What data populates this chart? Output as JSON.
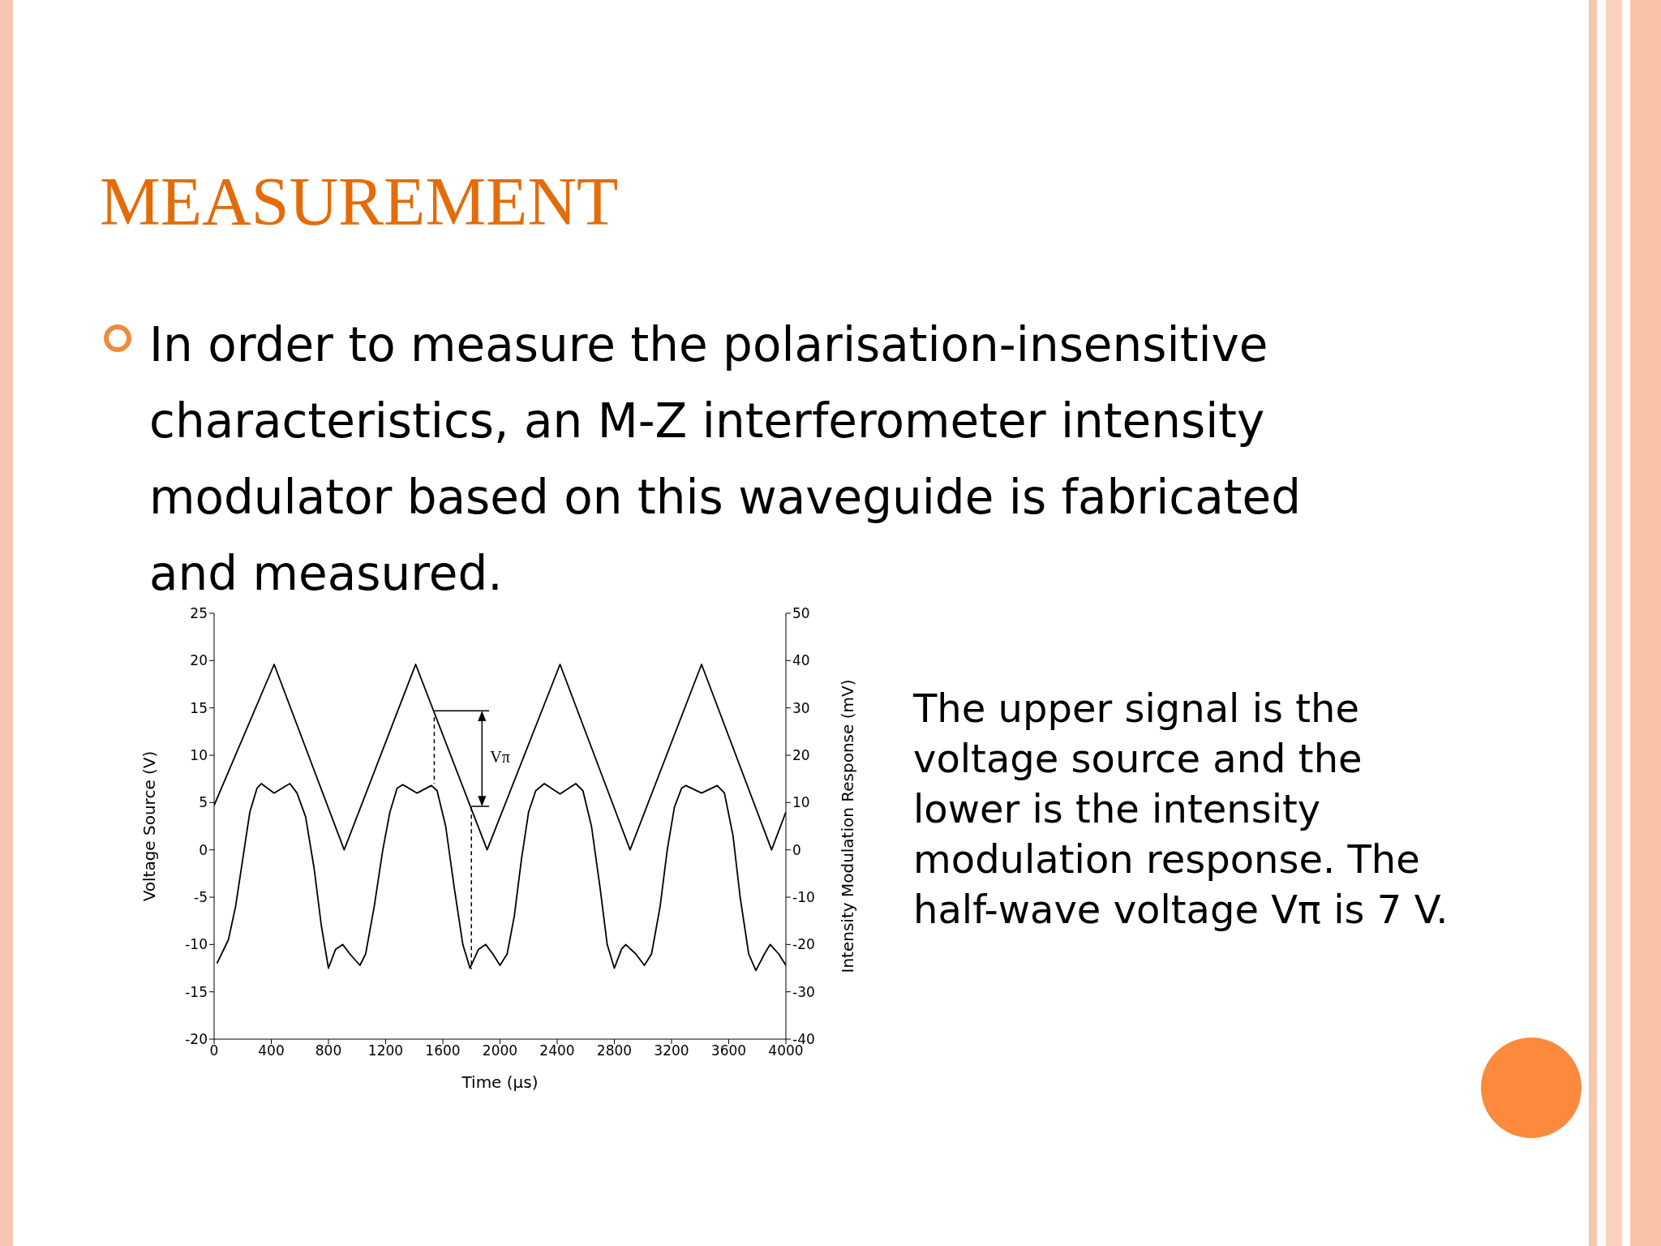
{
  "chart_data": {
    "type": "line",
    "title": "MEASUREMENT",
    "xlabel": "Time (μs)",
    "ylabel": "Voltage Source (V)",
    "y2label": "Intensity Modulation Response (mV)",
    "annotations": [
      "In order to measure the polarisation-insensitive characteristics, an M-Z interferometer intensity modulator based on this waveguide is fabricated and measured.",
      "The upper signal is the voltage source and the lower is the intensity modulation response. The half-wave voltage Vπ is 7 V.",
      "Vπ"
    ],
    "series": [
      {
        "color": "#000000",
        "x": [
          0,
          420,
          910,
          1410,
          1910,
          2420,
          2910,
          3410,
          3900,
          4000
        ],
        "values": [
          4.7,
          19.6,
          0,
          19.6,
          0,
          19.6,
          0,
          19.6,
          0,
          4
        ]
      },
      {
        "color": "#000000",
        "axis": "y2",
        "x": [
          20,
          100,
          150,
          200,
          250,
          300,
          330,
          420,
          500,
          530,
          580,
          640,
          700,
          750,
          800,
          850,
          900,
          950,
          1020,
          1060,
          1120,
          1180,
          1230,
          1280,
          1320,
          1420,
          1520,
          1560,
          1620,
          1680,
          1740,
          1790,
          1850,
          1900,
          1950,
          2000,
          2050,
          2100,
          2150,
          2200,
          2250,
          2310,
          2420,
          2530,
          2580,
          2640,
          2700,
          2750,
          2800,
          2850,
          2880,
          2950,
          3010,
          3060,
          3120,
          3170,
          3220,
          3270,
          3300,
          3410,
          3520,
          3570,
          3630,
          3680,
          3740,
          3790,
          3850,
          3890,
          3950,
          4000
        ],
        "values": [
          -24,
          -19,
          -12,
          -2,
          8,
          13,
          14,
          12,
          13.5,
          14,
          12,
          7,
          -4,
          -16,
          -25,
          -21,
          -20,
          -22,
          -24.4,
          -22,
          -12,
          0,
          8,
          13,
          13.8,
          12,
          13.6,
          12.5,
          5,
          -8,
          -20,
          -25,
          -21,
          -20,
          -22,
          -24.4,
          -22,
          -14,
          -2,
          8,
          12.5,
          14,
          11.8,
          14,
          12.5,
          5,
          -8,
          -20,
          -25,
          -21,
          -20,
          -22,
          -24.4,
          -22,
          -12,
          0,
          9,
          13,
          13.6,
          12,
          13.6,
          12,
          3,
          -10,
          -22,
          -25.5,
          -22,
          -20,
          -22,
          -24.4
        ]
      }
    ],
    "xlim": [
      0,
      4000
    ],
    "xticks": [
      0,
      400,
      800,
      1200,
      1600,
      2000,
      2400,
      2800,
      3200,
      3600,
      4000
    ],
    "ylim": [
      -20,
      25
    ],
    "yticks": [
      -20,
      -15,
      -10,
      -5,
      0,
      5,
      10,
      15,
      20,
      25
    ],
    "y2lim": [
      -40,
      50
    ],
    "y2ticks": [
      -40,
      -30,
      -20,
      -10,
      0,
      10,
      20,
      30,
      40,
      50
    ],
    "grid": false,
    "marker": "none",
    "line_style": "solid"
  }
}
